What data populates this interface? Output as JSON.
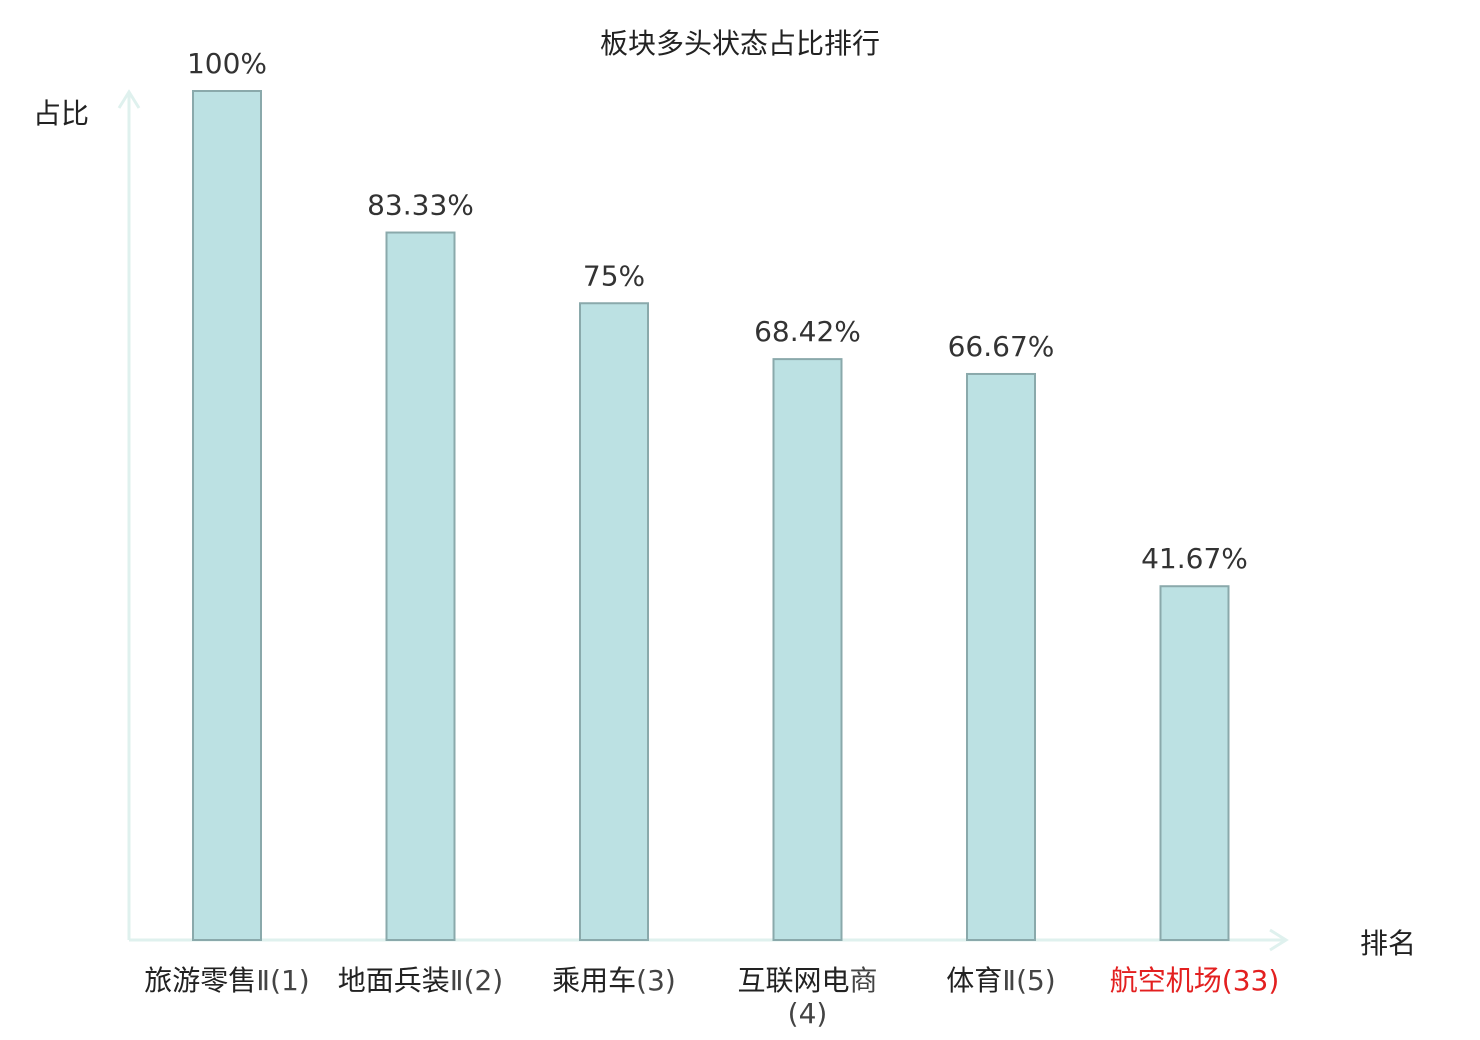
{
  "chart_data": {
    "type": "bar",
    "title": "板块多头状态占比排行",
    "ylabel": "占比",
    "xlabel": "排名",
    "ylim": [
      0,
      100
    ],
    "grid": false,
    "categories": [
      {
        "name": "旅游零售",
        "rank": "Ⅱ(1)"
      },
      {
        "name": "地面兵装",
        "rank": "Ⅱ(2)"
      },
      {
        "name": "乘用车",
        "rank": "(3)"
      },
      {
        "name": "互联网电",
        "rank": "商(4)"
      },
      {
        "name": "体育",
        "rank": "Ⅱ(5)"
      },
      {
        "name": "航空机场",
        "rank": "(33)",
        "highlight": true
      }
    ],
    "values": [
      100,
      83.33,
      75,
      68.42,
      66.67,
      41.67
    ],
    "value_labels": [
      "100%",
      "83.33%",
      "75%",
      "68.42%",
      "66.67%",
      "41.67%"
    ]
  },
  "colors": {
    "bar_fill": "#bce1e3",
    "bar_stroke": "#8aa9ab",
    "axis": "#dff1ee",
    "highlight": "#e32020"
  }
}
